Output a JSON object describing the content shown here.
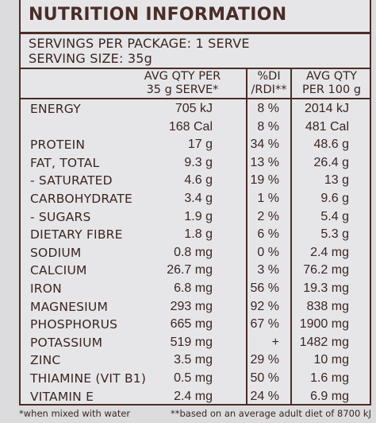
{
  "title": "NUTRITION INFORMATION",
  "servings_line": "SERVINGS PER PACKAGE: 1 SERVE",
  "serving_size_line": "SERVING SIZE: 35g",
  "columns": {
    "c1_line1": "AVG QTY PER",
    "c1_line2": "35 g SERVE*",
    "c2_line1": "%DI",
    "c2_line2": "/RDI**",
    "c3_line1": "AVG QTY",
    "c3_line2": "PER 100 g"
  },
  "rows": [
    {
      "name": "ENERGY",
      "serve": "705 kJ",
      "di": "8 %",
      "per100": "2014 kJ"
    },
    {
      "name": "",
      "serve": "168 Cal",
      "di": "8 %",
      "per100": "481 Cal"
    },
    {
      "name": "PROTEIN",
      "serve": "17 g",
      "di": "34 %",
      "per100": "48.6 g"
    },
    {
      "name": "FAT, TOTAL",
      "serve": "9.3 g",
      "di": "13 %",
      "per100": "26.4 g"
    },
    {
      "name": "- SATURATED",
      "serve": "4.6 g",
      "di": "19 %",
      "per100": "13 g"
    },
    {
      "name": "CARBOHYDRATE",
      "serve": "3.4 g",
      "di": "1 %",
      "per100": "9.6 g"
    },
    {
      "name": "- SUGARS",
      "serve": "1.9 g",
      "di": "2 %",
      "per100": "5.4 g"
    },
    {
      "name": "DIETARY FIBRE",
      "serve": "1.8 g",
      "di": "6 %",
      "per100": "5.3 g"
    },
    {
      "name": "SODIUM",
      "serve": "0.8 mg",
      "di": "0 %",
      "per100": "2.4 mg"
    },
    {
      "name": "CALCIUM",
      "serve": "26.7 mg",
      "di": "3 %",
      "per100": "76.2 mg"
    },
    {
      "name": "IRON",
      "serve": "6.8 mg",
      "di": "56 %",
      "per100": "19.3 mg"
    },
    {
      "name": "MAGNESIUM",
      "serve": "293 mg",
      "di": "92 %",
      "per100": "838 mg"
    },
    {
      "name": "PHOSPHORUS",
      "serve": "665 mg",
      "di": "67 %",
      "per100": "1900 mg"
    },
    {
      "name": "POTASSIUM",
      "serve": "519 mg",
      "di": "+",
      "per100": "1482 mg"
    },
    {
      "name": "ZINC",
      "serve": "3.5 mg",
      "di": "29 %",
      "per100": "10 mg"
    },
    {
      "name": "THIAMINE (VIT B1)",
      "serve": "0.5 mg",
      "di": "50 %",
      "per100": "1.6 mg"
    },
    {
      "name": "VITAMIN E",
      "serve": "2.4 mg",
      "di": "24 %",
      "per100": "6.9 mg"
    }
  ],
  "footnotes": {
    "left": "*when mixed with water",
    "right": "**based on an average adult diet of 8700 kJ"
  }
}
